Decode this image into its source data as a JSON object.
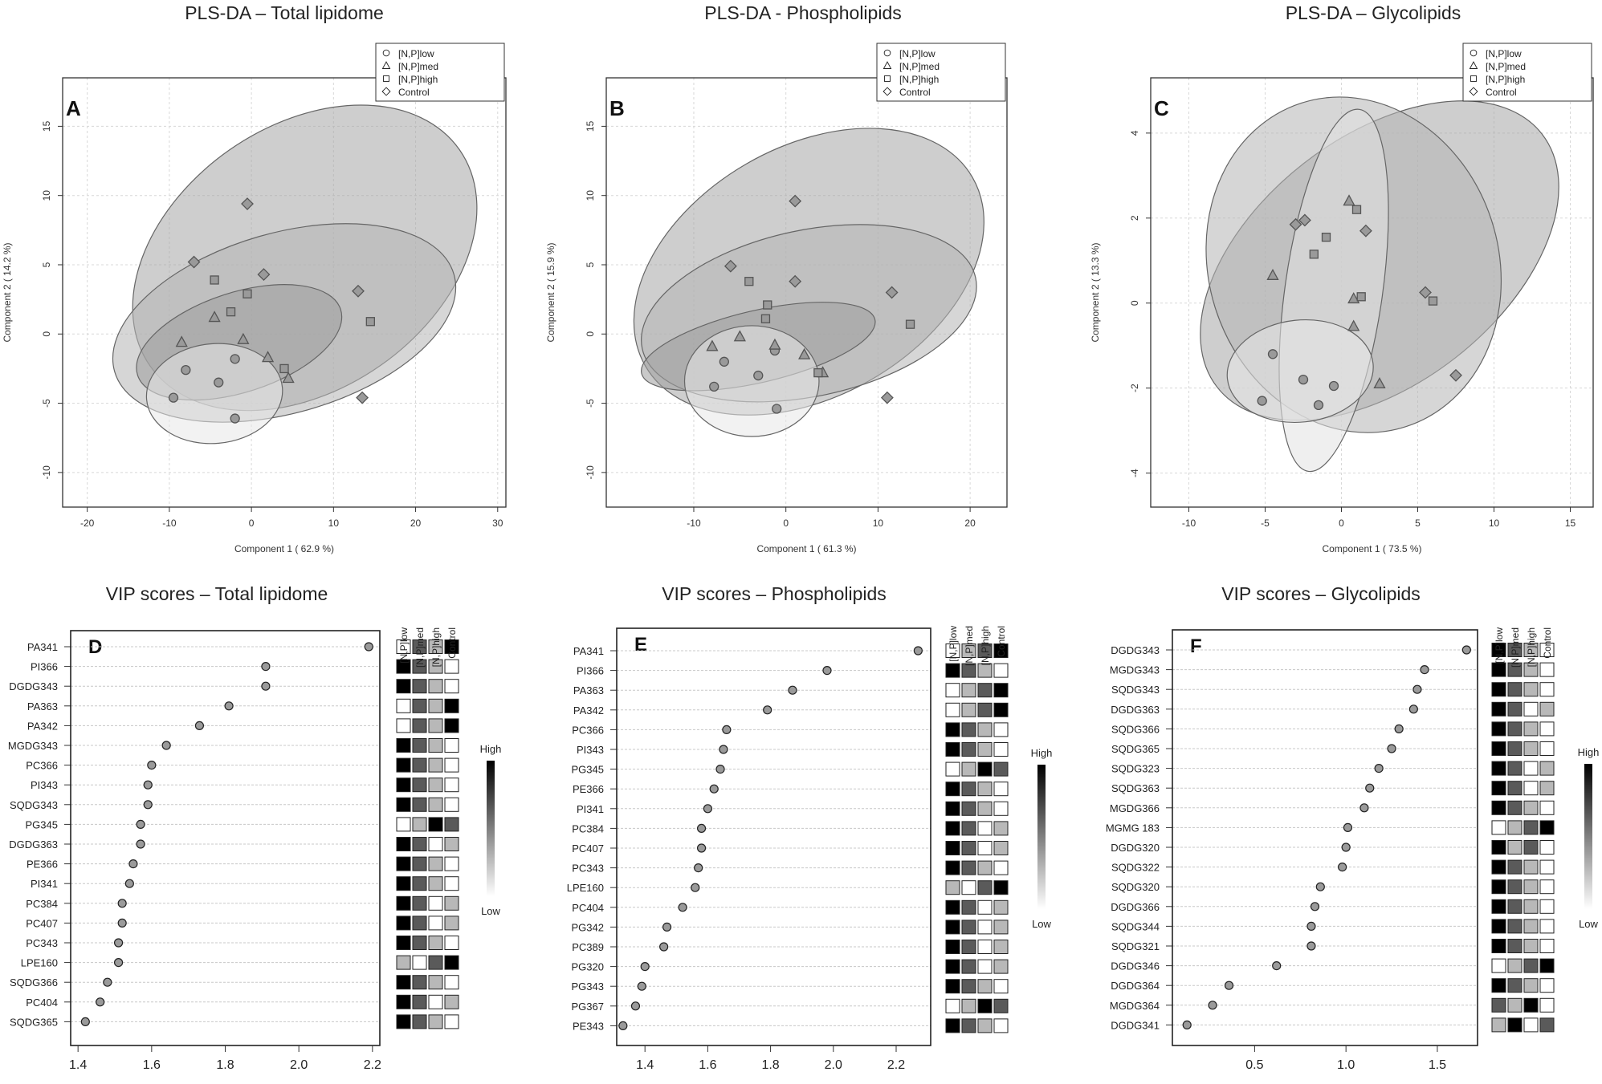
{
  "chart_data": [
    {
      "id": "A",
      "type": "scatter",
      "title": "PLS-DA – Total lipidome",
      "panel_label": "A",
      "xlabel": "Component 1 ( 62.9 %)",
      "ylabel": "Component 2 ( 14.2 %)",
      "xlim": [
        -23,
        31
      ],
      "ylim": [
        -12.5,
        18.5
      ],
      "xticks": [
        -20,
        -10,
        0,
        10,
        20,
        30
      ],
      "yticks": [
        -10,
        -5,
        0,
        5,
        10,
        15
      ],
      "legend_position": "top-right",
      "legend": [
        "[N,P]low",
        "[N,P]med",
        "[N,P]high",
        "Control"
      ],
      "ellipses": [
        {
          "group": "Control",
          "cx": 6.5,
          "cy": 5.5,
          "rx": 23,
          "ry": 9.5,
          "angle": -35,
          "shade": "#a6a6a6"
        },
        {
          "group": "[N,P]high",
          "cx": 4,
          "cy": 0.8,
          "rx": 21.5,
          "ry": 6.5,
          "angle": -16,
          "shade": "#b4b4b4"
        },
        {
          "group": "[N,P]med",
          "cx": -1.5,
          "cy": -0.6,
          "rx": 13,
          "ry": 3.6,
          "angle": -18,
          "shade": "#9c9c9c"
        },
        {
          "group": "[N,P]low",
          "cx": -4.5,
          "cy": -4.3,
          "rx": 8.3,
          "ry": 3.6,
          "angle": -5,
          "shade": "#e8e8e8"
        }
      ],
      "points": {
        "[N,P]low": [
          [
            -9.5,
            -4.6
          ],
          [
            -8,
            -2.6
          ],
          [
            -4,
            -3.5
          ],
          [
            -2,
            -6.1
          ],
          [
            -2,
            -1.8
          ]
        ],
        "[N,P]med": [
          [
            -8.5,
            -0.6
          ],
          [
            -4.5,
            1.2
          ],
          [
            -1,
            -0.4
          ],
          [
            2,
            -1.7
          ],
          [
            4.5,
            -3.2
          ]
        ],
        "[N,P]high": [
          [
            -4.5,
            3.9
          ],
          [
            -2.5,
            1.6
          ],
          [
            -0.5,
            2.9
          ],
          [
            4,
            -2.5
          ],
          [
            14.5,
            0.9
          ]
        ],
        "Control": [
          [
            -7,
            5.2
          ],
          [
            -0.5,
            9.4
          ],
          [
            1.5,
            4.3
          ],
          [
            13,
            3.1
          ],
          [
            13.5,
            -4.6
          ]
        ]
      }
    },
    {
      "id": "B",
      "type": "scatter",
      "title": "PLS-DA - Phospholipids",
      "panel_label": "B",
      "xlabel": "Component 1 ( 61.3 %)",
      "ylabel": "Component 2 ( 15.9 %)",
      "xlim": [
        -19.5,
        24
      ],
      "ylim": [
        -12.5,
        18.5
      ],
      "xticks": [
        -10,
        0,
        10,
        20
      ],
      "yticks": [
        -10,
        -5,
        0,
        5,
        10,
        15
      ],
      "legend_position": "top-right",
      "legend": [
        "[N,P]low",
        "[N,P]med",
        "[N,P]high",
        "Control"
      ],
      "ellipses": [
        {
          "group": "Control",
          "cx": 2.5,
          "cy": 4.5,
          "rx": 20.5,
          "ry": 9,
          "angle": -30,
          "shade": "#a6a6a6"
        },
        {
          "group": "[N,P]high",
          "cx": 2.5,
          "cy": 1.5,
          "rx": 18.5,
          "ry": 6,
          "angle": -12,
          "shade": "#b4b4b4"
        },
        {
          "group": "[N,P]med",
          "cx": -3,
          "cy": -0.9,
          "rx": 13,
          "ry": 2.6,
          "angle": -13,
          "shade": "#9c9c9c"
        },
        {
          "group": "[N,P]low",
          "cx": -3.7,
          "cy": -3.4,
          "rx": 7.3,
          "ry": 4,
          "angle": 0,
          "shade": "#e8e8e8"
        }
      ],
      "points": {
        "[N,P]low": [
          [
            -7.8,
            -3.8
          ],
          [
            -6.7,
            -2
          ],
          [
            -3,
            -3
          ],
          [
            -1.2,
            -1.2
          ],
          [
            -1,
            -5.4
          ]
        ],
        "[N,P]med": [
          [
            -8,
            -0.9
          ],
          [
            -5,
            -0.2
          ],
          [
            -1.2,
            -0.8
          ],
          [
            2,
            -1.5
          ],
          [
            4,
            -2.8
          ]
        ],
        "[N,P]high": [
          [
            -4,
            3.8
          ],
          [
            -2,
            2.1
          ],
          [
            -2.2,
            1.1
          ],
          [
            3.5,
            -2.8
          ],
          [
            13.5,
            0.7
          ]
        ],
        "Control": [
          [
            -6,
            4.9
          ],
          [
            1,
            9.6
          ],
          [
            1,
            3.8
          ],
          [
            11.5,
            3
          ],
          [
            11,
            -4.6
          ]
        ]
      }
    },
    {
      "id": "C",
      "type": "scatter",
      "title": "PLS-DA – Glycolipids",
      "panel_label": "C",
      "xlabel": "Component 1 ( 73.5 %)",
      "ylabel": "Component 2 ( 13.3 %)",
      "xlim": [
        -12.5,
        16.5
      ],
      "ylim": [
        -4.8,
        5.3
      ],
      "xticks": [
        -10,
        -5,
        0,
        5,
        10,
        15
      ],
      "yticks": [
        -4,
        -2,
        0,
        2,
        4
      ],
      "legend_position": "top-right",
      "legend": [
        "[N,P]low",
        "[N,P]med",
        "[N,P]high",
        "Control"
      ],
      "ellipses": [
        {
          "group": "Control",
          "cx": 2.5,
          "cy": 1,
          "rx": 13.5,
          "ry": 2.9,
          "angle": -38,
          "shade": "#a6a6a6"
        },
        {
          "group": "[N,P]high",
          "cx": 0.8,
          "cy": 0.9,
          "rx": 9.5,
          "ry": 4,
          "angle": -18,
          "shade": "#b4b4b4"
        },
        {
          "group": "[N,P]med",
          "cx": -0.5,
          "cy": 0.3,
          "rx": 3.2,
          "ry": 4.3,
          "angle": 8,
          "shade": "#e2e2e2"
        },
        {
          "group": "[N,P]low",
          "cx": -2.7,
          "cy": -1.6,
          "rx": 4.8,
          "ry": 1.2,
          "angle": -6,
          "shade": "#e8e8e8"
        }
      ],
      "points": {
        "[N,P]low": [
          [
            -5.2,
            -2.3
          ],
          [
            -4.5,
            -1.2
          ],
          [
            -2.5,
            -1.8
          ],
          [
            -1.5,
            -2.4
          ],
          [
            -0.5,
            -1.95
          ]
        ],
        "[N,P]med": [
          [
            -4.5,
            0.65
          ],
          [
            0.5,
            2.4
          ],
          [
            0.8,
            0.1
          ],
          [
            0.8,
            -0.55
          ],
          [
            2.5,
            -1.9
          ]
        ],
        "[N,P]high": [
          [
            -1,
            1.55
          ],
          [
            -1.8,
            1.15
          ],
          [
            1,
            2.2
          ],
          [
            1.3,
            0.15
          ],
          [
            6,
            0.05
          ]
        ],
        "Control": [
          [
            -3,
            1.85
          ],
          [
            -2.4,
            1.95
          ],
          [
            1.6,
            1.7
          ],
          [
            5.5,
            0.25
          ],
          [
            7.5,
            -1.7
          ]
        ]
      }
    },
    {
      "id": "D",
      "type": "dot",
      "title": "VIP scores – Total lipidome",
      "panel_label": "D",
      "xlim": [
        1.38,
        2.22
      ],
      "xticks": [
        1.4,
        1.6,
        1.8,
        2.0,
        2.2
      ],
      "heatmap_columns": [
        "[N,P]low",
        "[N,P]med",
        "[N,P]high",
        "Control"
      ],
      "colorbar": {
        "high": "High",
        "low": "Low"
      },
      "labels": [
        "PA341",
        "PI366",
        "DGDG343",
        "PA363",
        "PA342",
        "MGDG343",
        "PC366",
        "PI343",
        "SQDG343",
        "PG345",
        "DGDG363",
        "PE366",
        "PI341",
        "PC384",
        "PC407",
        "PC343",
        "LPE160",
        "SQDG366",
        "PC404",
        "SQDG365"
      ],
      "values": [
        2.19,
        1.91,
        1.91,
        1.81,
        1.73,
        1.64,
        1.6,
        1.59,
        1.59,
        1.57,
        1.57,
        1.55,
        1.54,
        1.52,
        1.52,
        1.51,
        1.51,
        1.48,
        1.46,
        1.42
      ],
      "heatmap": [
        [
          3,
          1,
          2,
          0
        ],
        [
          0,
          1,
          2,
          3
        ],
        [
          0,
          1,
          2,
          3
        ],
        [
          3,
          1,
          2,
          0
        ],
        [
          3,
          1,
          2,
          0
        ],
        [
          0,
          1,
          2,
          3
        ],
        [
          0,
          1,
          2,
          3
        ],
        [
          0,
          1,
          2,
          3
        ],
        [
          0,
          1,
          2,
          3
        ],
        [
          3,
          2,
          0,
          1
        ],
        [
          0,
          1,
          3,
          2
        ],
        [
          0,
          1,
          2,
          3
        ],
        [
          0,
          1,
          2,
          3
        ],
        [
          0,
          1,
          3,
          2
        ],
        [
          0,
          1,
          3,
          2
        ],
        [
          0,
          1,
          2,
          3
        ],
        [
          2,
          3,
          1,
          0
        ],
        [
          0,
          1,
          2,
          3
        ],
        [
          0,
          1,
          3,
          2
        ],
        [
          0,
          1,
          2,
          3
        ]
      ]
    },
    {
      "id": "E",
      "type": "dot",
      "title": "VIP scores – Phospholipids",
      "panel_label": "E",
      "xlim": [
        1.31,
        2.31
      ],
      "xticks": [
        1.4,
        1.6,
        1.8,
        2.0,
        2.2
      ],
      "heatmap_columns": [
        "[N,P]low",
        "[N,P]med",
        "[N,P]high",
        "Control"
      ],
      "colorbar": {
        "high": "High",
        "low": "Low"
      },
      "labels": [
        "PA341",
        "PI366",
        "PA363",
        "PA342",
        "PC366",
        "PI343",
        "PG345",
        "PE366",
        "PI341",
        "PC384",
        "PC407",
        "PC343",
        "LPE160",
        "PC404",
        "PG342",
        "PC389",
        "PG320",
        "PG343",
        "PG367",
        "PE343"
      ],
      "values": [
        2.27,
        1.98,
        1.87,
        1.79,
        1.66,
        1.65,
        1.64,
        1.62,
        1.6,
        1.58,
        1.58,
        1.57,
        1.56,
        1.52,
        1.47,
        1.46,
        1.4,
        1.39,
        1.37,
        1.33
      ],
      "heatmap": [
        [
          3,
          2,
          1,
          0
        ],
        [
          0,
          1,
          2,
          3
        ],
        [
          3,
          2,
          1,
          0
        ],
        [
          3,
          2,
          1,
          0
        ],
        [
          0,
          1,
          2,
          3
        ],
        [
          0,
          1,
          2,
          3
        ],
        [
          3,
          2,
          0,
          1
        ],
        [
          0,
          1,
          2,
          3
        ],
        [
          0,
          1,
          2,
          3
        ],
        [
          0,
          1,
          3,
          2
        ],
        [
          0,
          1,
          3,
          2
        ],
        [
          0,
          1,
          2,
          3
        ],
        [
          2,
          3,
          1,
          0
        ],
        [
          0,
          1,
          3,
          2
        ],
        [
          0,
          1,
          3,
          2
        ],
        [
          0,
          1,
          3,
          2
        ],
        [
          0,
          1,
          3,
          2
        ],
        [
          0,
          1,
          2,
          3
        ],
        [
          3,
          2,
          0,
          1
        ],
        [
          0,
          1,
          2,
          3
        ]
      ]
    },
    {
      "id": "F",
      "type": "dot",
      "title": "VIP scores – Glycolipids",
      "panel_label": "F",
      "xlim": [
        0.05,
        1.72
      ],
      "xticks": [
        0.5,
        1.0,
        1.5
      ],
      "heatmap_columns": [
        "[N,P]low",
        "[N,P]med",
        "[N,P]high",
        "Control"
      ],
      "colorbar": {
        "high": "High",
        "low": "Low"
      },
      "labels": [
        "DGDG343",
        "MGDG343",
        "SQDG343",
        "DGDG363",
        "SQDG366",
        "SQDG365",
        "SQDG323",
        "SQDG363",
        "MGDG366",
        "MGMG 183",
        "DGDG320",
        "SQDG322",
        "SQDG320",
        "DGDG366",
        "SQDG344",
        "SQDG321",
        "DGDG346",
        "DGDG364",
        "MGDG364",
        "DGDG341"
      ],
      "values": [
        1.66,
        1.43,
        1.39,
        1.37,
        1.29,
        1.25,
        1.18,
        1.13,
        1.1,
        1.01,
        1.0,
        0.98,
        0.86,
        0.83,
        0.81,
        0.81,
        0.62,
        0.36,
        0.27,
        0.13
      ],
      "heatmap": [
        [
          0,
          1,
          2,
          3
        ],
        [
          0,
          1,
          2,
          3
        ],
        [
          0,
          1,
          2,
          3
        ],
        [
          0,
          1,
          3,
          2
        ],
        [
          0,
          1,
          2,
          3
        ],
        [
          0,
          1,
          2,
          3
        ],
        [
          0,
          1,
          3,
          2
        ],
        [
          0,
          1,
          3,
          2
        ],
        [
          0,
          1,
          2,
          3
        ],
        [
          3,
          2,
          1,
          0
        ],
        [
          0,
          2,
          1,
          3
        ],
        [
          0,
          1,
          2,
          3
        ],
        [
          0,
          1,
          2,
          3
        ],
        [
          0,
          1,
          2,
          3
        ],
        [
          0,
          1,
          2,
          3
        ],
        [
          0,
          1,
          2,
          3
        ],
        [
          3,
          2,
          1,
          0
        ],
        [
          0,
          1,
          2,
          3
        ],
        [
          1,
          2,
          0,
          3
        ],
        [
          2,
          0,
          3,
          1
        ]
      ]
    }
  ]
}
